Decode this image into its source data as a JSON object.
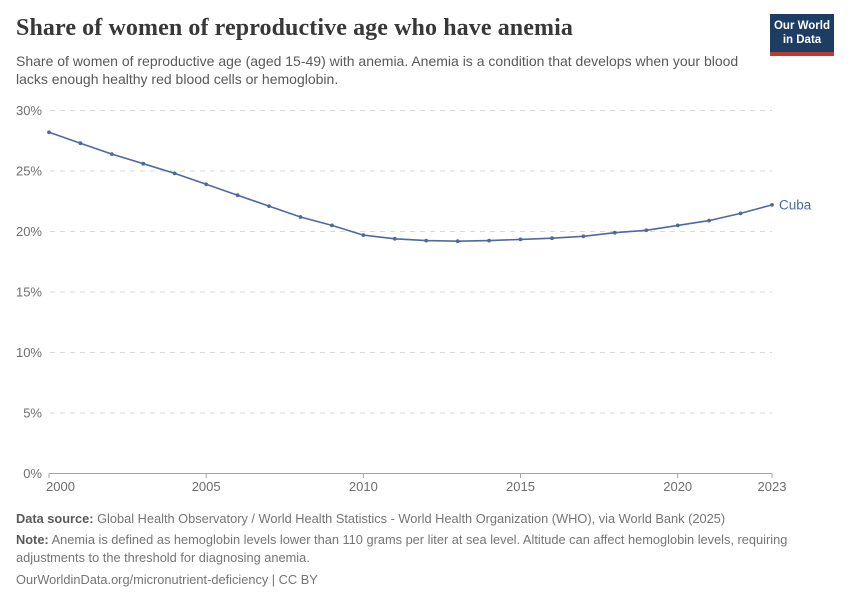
{
  "header": {
    "title": "Share of women of reproductive age who have anemia",
    "subtitle": "Share of women of reproductive age (aged 15-49) with anemia. Anemia is a condition that develops when your blood lacks enough healthy red blood cells or hemoglobin.",
    "logo": {
      "line1": "Our World",
      "line2": "in Data",
      "bg_color": "#1d3d63",
      "stripe_color": "#c0392b"
    }
  },
  "chart_data": {
    "type": "line",
    "title": "Share of women of reproductive age who have anemia",
    "x": [
      2000,
      2001,
      2002,
      2003,
      2004,
      2005,
      2006,
      2007,
      2008,
      2009,
      2010,
      2011,
      2012,
      2013,
      2014,
      2015,
      2016,
      2017,
      2018,
      2019,
      2020,
      2021,
      2022,
      2023
    ],
    "series": [
      {
        "name": "Cuba",
        "color": "#4c6aa0",
        "values": [
          28.2,
          27.3,
          26.4,
          25.6,
          24.8,
          23.9,
          23.0,
          22.1,
          21.2,
          20.5,
          19.7,
          19.4,
          19.25,
          19.2,
          19.25,
          19.35,
          19.45,
          19.6,
          19.9,
          20.1,
          20.5,
          20.9,
          21.5,
          22.2
        ]
      }
    ],
    "end_label": "Cuba",
    "xlabel": "",
    "ylabel": "",
    "xlim": [
      2000,
      2023
    ],
    "ylim": [
      0,
      30
    ],
    "xticks": [
      2000,
      2005,
      2010,
      2015,
      2020,
      2023
    ],
    "yticks": [
      0,
      5,
      10,
      15,
      20,
      25,
      30
    ],
    "ytick_suffix": "%",
    "grid": true,
    "legend_position": "end-of-line",
    "colors": {
      "gridline": "#d8d8d8",
      "axis": "#a5a5a5",
      "tick_label": "#6e6e6e"
    }
  },
  "footer": {
    "source_label": "Data source:",
    "source_text": "Global Health Observatory / World Health Statistics - World Health Organization (WHO), via World Bank (2025)",
    "note_label": "Note:",
    "note_text": "Anemia is defined as hemoglobin levels lower than 110 grams per liter at sea level. Altitude can affect hemoglobin levels, requiring adjustments to the threshold for diagnosing anemia.",
    "citation": "OurWorldinData.org/micronutrient-deficiency | CC BY"
  }
}
